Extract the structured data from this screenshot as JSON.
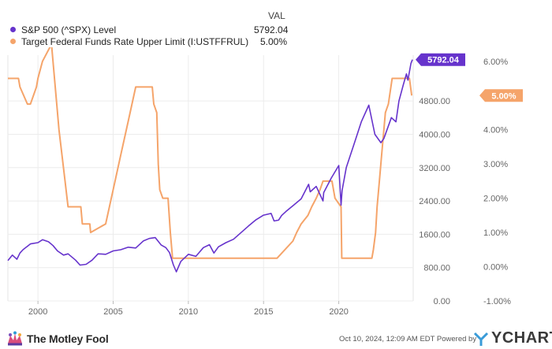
{
  "legend": {
    "header": "VAL",
    "series": [
      {
        "name": "S&P 500 (^SPX) Level",
        "value": "5792.04",
        "color": "#6633cc"
      },
      {
        "name": "Target Federal Funds Rate Upper Limit (I:USTFFRUL)",
        "value": "5.00%",
        "color": "#f5a46a"
      }
    ]
  },
  "footer": {
    "brand": "The Motley Fool",
    "timestamp": "Oct 10, 2024, 12:09 AM EDT Powered by",
    "ycharts_logo": "YCHARTS",
    "jester_icon": "jester-cap-icon",
    "ycharts_icon": "ycharts-y-icon"
  },
  "chart_data": {
    "type": "line",
    "x_ticks": [
      "2000",
      "2005",
      "2010",
      "2015",
      "2020"
    ],
    "xlim": [
      1998.0,
      2024.95
    ],
    "y_left": {
      "ticks": [
        "0.00",
        "800.00",
        "1600.00",
        "2400.00",
        "3200.00",
        "4000.00",
        "4800.00"
      ],
      "lim": [
        0,
        5900
      ]
    },
    "y_right": {
      "ticks": [
        "-1.00%",
        "0.00%",
        "1.00%",
        "2.00%",
        "3.00%",
        "4.00%",
        "5.00%",
        "6.00%"
      ],
      "lim": [
        -1,
        6.18
      ]
    },
    "grid": true,
    "end_labels": {
      "left": "5792.04",
      "right": "5.00%"
    },
    "series": [
      {
        "name": "S&P 500 (^SPX) Level",
        "axis": "left",
        "color": "#6633cc",
        "x": [
          1998.0,
          1998.3,
          1998.6,
          1998.8,
          1999.0,
          1999.5,
          2000.0,
          2000.3,
          2000.7,
          2001.0,
          2001.3,
          2001.7,
          2002.0,
          2002.5,
          2002.8,
          2003.2,
          2003.6,
          2004.0,
          2004.5,
          2005.0,
          2005.5,
          2006.0,
          2006.5,
          2007.0,
          2007.4,
          2007.8,
          2008.2,
          2008.5,
          2008.75,
          2009.0,
          2009.2,
          2009.5,
          2010.0,
          2010.5,
          2011.0,
          2011.4,
          2011.7,
          2012.0,
          2012.5,
          2013.0,
          2013.5,
          2014.0,
          2014.5,
          2015.0,
          2015.5,
          2015.7,
          2016.0,
          2016.2,
          2016.5,
          2017.0,
          2017.5,
          2018.0,
          2018.1,
          2018.5,
          2018.95,
          2019.0,
          2019.5,
          2020.0,
          2020.15,
          2020.22,
          2020.5,
          2021.0,
          2021.5,
          2022.0,
          2022.4,
          2022.8,
          2023.0,
          2023.5,
          2023.8,
          2024.0,
          2024.3,
          2024.5,
          2024.6,
          2024.8,
          2024.9
        ],
        "values": [
          970,
          1100,
          1000,
          1150,
          1230,
          1370,
          1400,
          1470,
          1420,
          1330,
          1200,
          1100,
          1130,
          980,
          860,
          880,
          980,
          1130,
          1120,
          1200,
          1230,
          1290,
          1270,
          1440,
          1500,
          1520,
          1340,
          1280,
          1160,
          870,
          700,
          950,
          1120,
          1070,
          1280,
          1350,
          1150,
          1300,
          1400,
          1480,
          1640,
          1800,
          1950,
          2060,
          2100,
          1920,
          1940,
          2050,
          2150,
          2300,
          2450,
          2800,
          2620,
          2750,
          2400,
          2600,
          2950,
          3250,
          2300,
          2650,
          3200,
          3750,
          4300,
          4700,
          4000,
          3800,
          3900,
          4400,
          4300,
          4800,
          5200,
          5450,
          5300,
          5700,
          5792.04
        ]
      },
      {
        "name": "Target Federal Funds Rate Upper Limit (I:USTFFRUL)",
        "axis": "right",
        "color": "#f5a46a",
        "x": [
          1998.0,
          1998.7,
          1998.8,
          1999.3,
          1999.5,
          1999.9,
          2000.0,
          2000.3,
          2000.9,
          2001.1,
          2001.4,
          2001.8,
          2002.0,
          2002.85,
          2002.95,
          2003.45,
          2003.5,
          2004.5,
          2005.0,
          2005.5,
          2006.0,
          2006.5,
          2007.6,
          2007.7,
          2007.9,
          2008.0,
          2008.1,
          2008.3,
          2008.65,
          2008.8,
          2008.95,
          2015.9,
          2016.95,
          2017.2,
          2017.5,
          2017.95,
          2018.2,
          2018.5,
          2018.75,
          2018.95,
          2019.55,
          2019.65,
          2019.75,
          2020.15,
          2020.2,
          2022.2,
          2022.3,
          2022.45,
          2022.55,
          2022.7,
          2022.85,
          2023.0,
          2023.1,
          2023.3,
          2023.55,
          2024.7,
          2024.85
        ],
        "values": [
          5.5,
          5.5,
          5.25,
          4.75,
          4.75,
          5.25,
          5.5,
          6.0,
          6.5,
          5.5,
          4.0,
          2.5,
          1.75,
          1.75,
          1.25,
          1.25,
          1.0,
          1.25,
          2.25,
          3.25,
          4.25,
          5.25,
          5.25,
          4.75,
          4.5,
          3.0,
          2.25,
          2.0,
          2.0,
          1.0,
          0.25,
          0.25,
          0.75,
          1.0,
          1.25,
          1.5,
          1.75,
          2.0,
          2.25,
          2.5,
          2.5,
          2.25,
          2.0,
          1.75,
          0.25,
          0.25,
          0.5,
          1.0,
          1.75,
          2.5,
          3.25,
          4.0,
          4.5,
          4.75,
          5.5,
          5.5,
          5.0
        ]
      }
    ]
  }
}
